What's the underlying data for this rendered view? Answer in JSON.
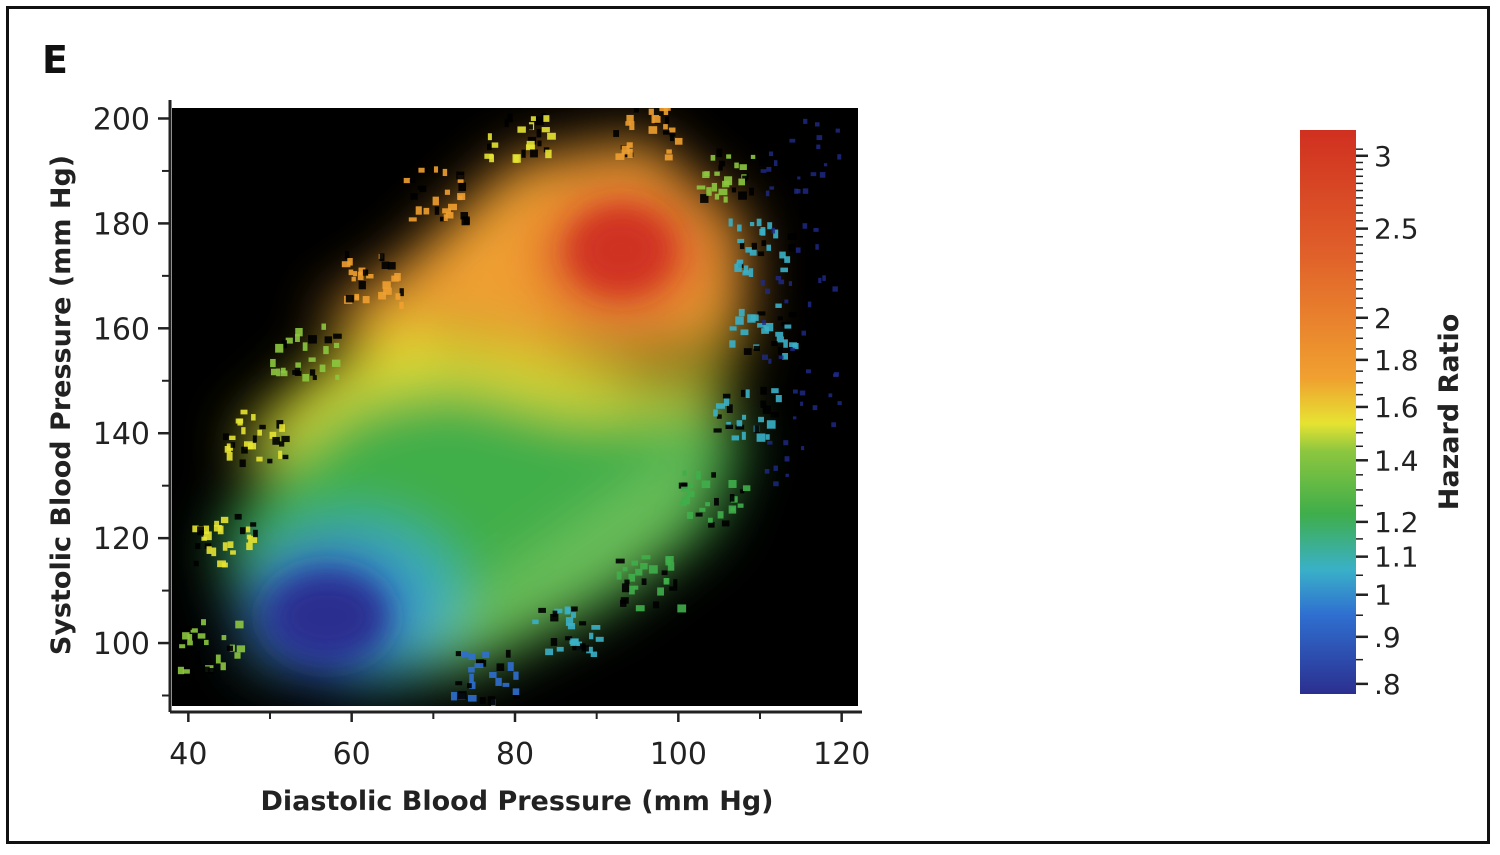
{
  "panel_label": "E",
  "chart_data": {
    "type": "heatmap",
    "xlabel": "Diastolic Blood Pressure (mm Hg)",
    "ylabel": "Systolic Blood Pressure (mm Hg)",
    "xlim": [
      38,
      122
    ],
    "ylim": [
      88,
      202
    ],
    "x_ticks": [
      40,
      60,
      80,
      100,
      120
    ],
    "y_ticks": [
      100,
      120,
      140,
      160,
      180,
      200
    ],
    "x_tick_labels": [
      "40",
      "60",
      "80",
      "100",
      "120"
    ],
    "y_tick_labels": [
      "100",
      "120",
      "140",
      "160",
      "180",
      "200"
    ],
    "background_color": "#000000",
    "colorbar": {
      "label": "Hazard Ratio",
      "scale": "log",
      "range": [
        0.78,
        3.2
      ],
      "ticks": [
        0.8,
        0.9,
        1,
        1.1,
        1.2,
        1.4,
        1.6,
        1.8,
        2,
        2.5,
        3
      ],
      "tick_labels": [
        ".8",
        ".9",
        "1",
        "1.1",
        "1.2",
        "1.4",
        "1.6",
        "1.8",
        "2",
        "2.5",
        "3"
      ],
      "colors": [
        "#2b2f8f",
        "#2f6fd0",
        "#3ab0c8",
        "#3fae4a",
        "#8cc63f",
        "#e6e332",
        "#f0a030",
        "#e0602a",
        "#d03020"
      ]
    },
    "hazard_regions": [
      {
        "description_value": 0.8,
        "dbp": 58,
        "sbp": 108
      },
      {
        "description_value": 1.2,
        "dbp": 70,
        "sbp": 132
      },
      {
        "description_value": 1.45,
        "dbp": 80,
        "sbp": 150
      },
      {
        "description_value": 2.5,
        "dbp": 92,
        "sbp": 175
      }
    ]
  }
}
